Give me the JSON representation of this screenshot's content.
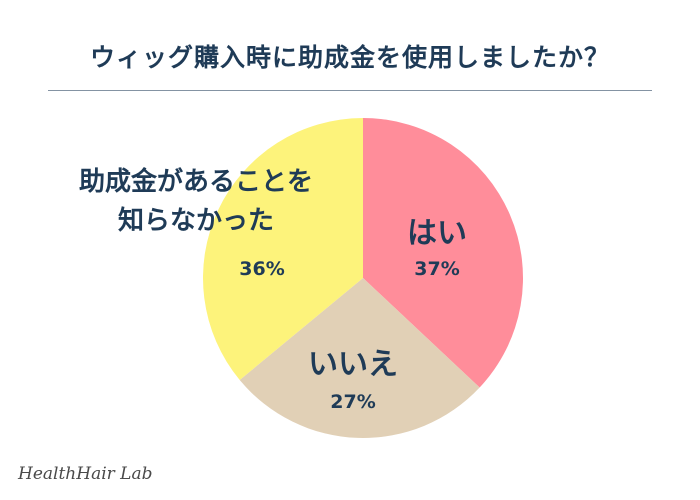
{
  "title": "ウィッグ購入時に助成金を使用しましたか？",
  "brand": "HealthHair Lab",
  "chart_data": {
    "type": "pie",
    "title": "ウィッグ購入時に助成金を使用しましたか？",
    "slices": [
      {
        "label": "はい",
        "value": 37,
        "value_label": "37%",
        "color": "#ff8d9a"
      },
      {
        "label": "いいえ",
        "value": 27,
        "value_label": "27%",
        "color": "#e1d0b6"
      },
      {
        "label_lines": [
          "助成金があることを",
          "知らなかった"
        ],
        "value": 36,
        "value_label": "36%",
        "color": "#fdf37b"
      }
    ],
    "start": "12 o'clock",
    "direction": "clockwise",
    "legend": "none"
  },
  "colors": {
    "text": "#1f3b57",
    "background": "#ffffff"
  }
}
